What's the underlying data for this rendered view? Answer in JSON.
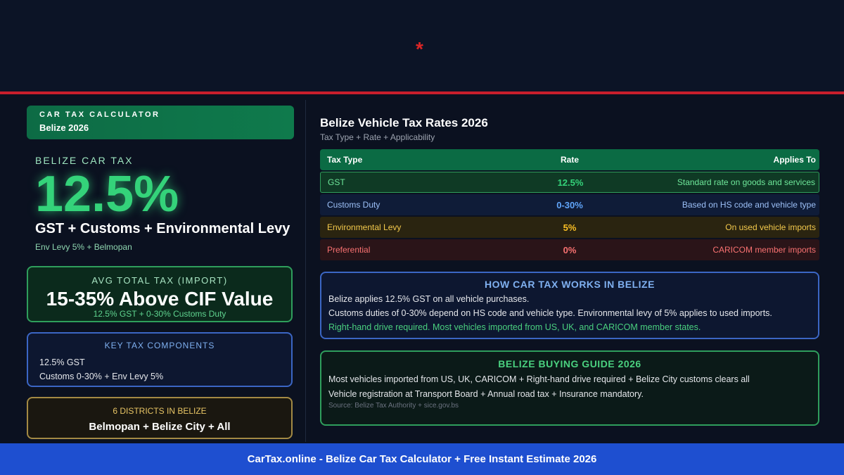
{
  "header": {
    "mark": "*"
  },
  "brand": {
    "title": "CAR TAX CALCULATOR",
    "subtitle": "Belize 2026"
  },
  "hero": {
    "label": "BELIZE CAR TAX",
    "value": "12.5%",
    "caption": "GST + Customs + Environmental Levy",
    "note": "Env Levy 5% + Belmopan"
  },
  "avg": {
    "label": "AVG TOTAL TAX (IMPORT)",
    "value": "15-35% Above CIF Value",
    "note": "12.5% GST + 0-30% Customs Duty"
  },
  "key_components": {
    "label": "KEY TAX COMPONENTS",
    "lines": [
      "12.5% GST",
      "Customs 0-30% + Env Levy 5%"
    ]
  },
  "districts": {
    "label": "6 DISTRICTS IN BELIZE",
    "value": "Belmopan + Belize City + All"
  },
  "rates": {
    "title": "Belize Vehicle Tax Rates 2026",
    "subtitle": "Tax Type + Rate + Applicability",
    "headers": [
      "Tax Type",
      "Rate",
      "Applies To"
    ],
    "rows": [
      {
        "type": "GST",
        "rate": "12.5%",
        "applies": "Standard rate on goods and services"
      },
      {
        "type": "Customs Duty",
        "rate": "0-30%",
        "applies": "Based on HS code and vehicle type"
      },
      {
        "type": "Environmental Levy",
        "rate": "5%",
        "applies": "On used vehicle imports"
      },
      {
        "type": "Preferential",
        "rate": "0%",
        "applies": "CARICOM member imports"
      }
    ]
  },
  "how": {
    "title": "HOW CAR TAX WORKS IN BELIZE",
    "lines": [
      "Belize applies 12.5% GST on all vehicle purchases.",
      "Customs duties of 0-30% depend on HS code and vehicle type. Environmental levy of 5% applies to used imports.",
      "Right-hand drive required. Most vehicles imported from US, UK, and CARICOM member states."
    ]
  },
  "guide": {
    "title": "BELIZE BUYING GUIDE 2026",
    "lines": [
      "Most vehicles imported from US, UK, CARICOM + Right-hand drive required + Belize City customs clears all",
      "Vehicle registration at Transport Board + Annual road tax + Insurance mandatory."
    ],
    "source": "Source: Belize Tax Authority + sice.gov.bs"
  },
  "footer": {
    "text": "CarTax.online - Belize Car Tax Calculator + Free Instant Estimate 2026"
  },
  "colors": {
    "accent_green": "#34d37a",
    "accent_blue": "#3b66c4",
    "accent_red": "#c81e2c",
    "accent_gold": "#fbbf24",
    "footer_blue": "#1e4fd0"
  }
}
